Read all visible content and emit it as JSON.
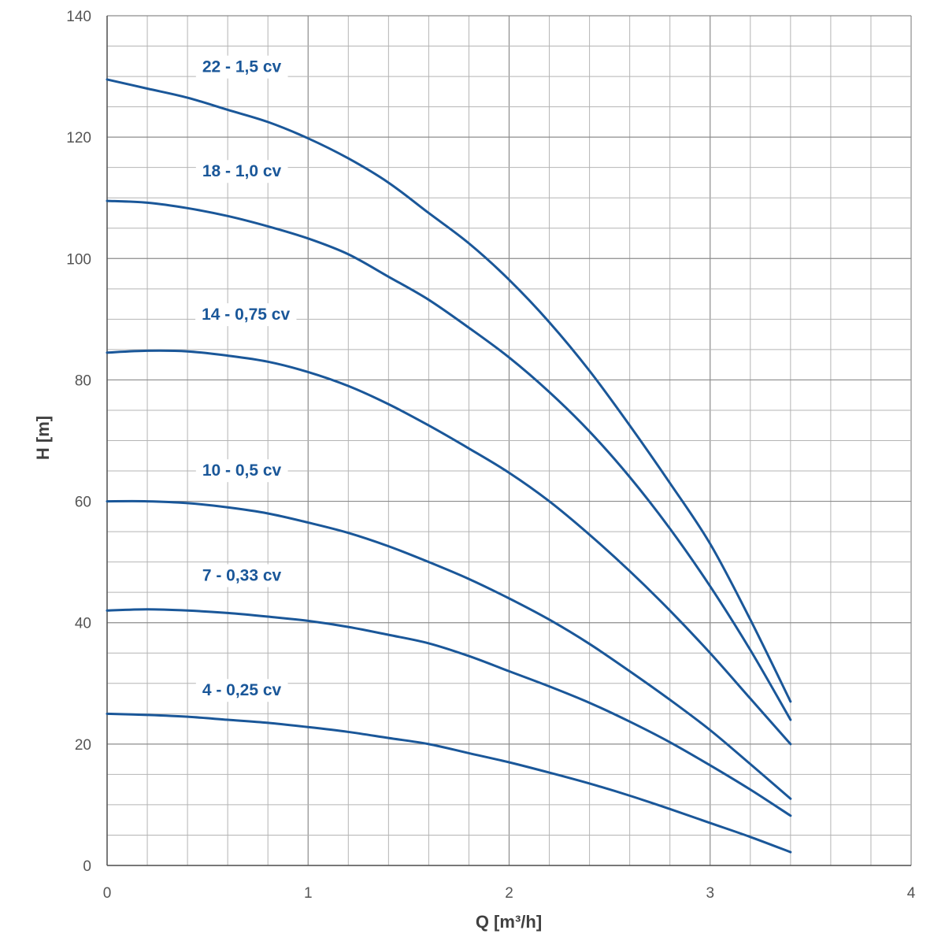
{
  "chart_data": {
    "type": "line",
    "title": "",
    "xlabel": "Q [m³/h]",
    "ylabel": "H [m]",
    "xlim": [
      0,
      4
    ],
    "ylim": [
      0,
      140
    ],
    "x_ticks": [
      "0",
      "1",
      "2",
      "3",
      "4"
    ],
    "y_ticks": [
      "0",
      "20",
      "40",
      "60",
      "80",
      "100",
      "120",
      "140"
    ],
    "x_minor_step": 0.2,
    "y_minor_step": 5,
    "grid": true,
    "line_color": "#1a5799",
    "series": [
      {
        "name": "22 - 1,5 cv",
        "label_at": [
          0.67,
          130.7
        ],
        "x": [
          0,
          0.2,
          0.4,
          0.6,
          0.8,
          1.0,
          1.2,
          1.4,
          1.6,
          1.8,
          2.0,
          2.2,
          2.4,
          2.6,
          2.8,
          3.0,
          3.2,
          3.4
        ],
        "values": [
          129.5,
          128.0,
          126.5,
          124.5,
          122.5,
          119.8,
          116.5,
          112.5,
          107.5,
          102.5,
          96.5,
          89.5,
          81.5,
          72.5,
          63.0,
          53.0,
          40.5,
          27.0
        ]
      },
      {
        "name": "18 - 1,0 cv",
        "label_at": [
          0.67,
          113.5
        ],
        "x": [
          0,
          0.2,
          0.4,
          0.6,
          0.8,
          1.0,
          1.2,
          1.4,
          1.6,
          1.8,
          2.0,
          2.2,
          2.4,
          2.6,
          2.8,
          3.0,
          3.2,
          3.4
        ],
        "values": [
          109.5,
          109.2,
          108.3,
          107.0,
          105.3,
          103.3,
          100.7,
          97.0,
          93.2,
          88.6,
          83.7,
          78.0,
          71.5,
          64.0,
          55.5,
          46.0,
          35.5,
          24.0
        ]
      },
      {
        "name": "14 - 0,75 cv",
        "label_at": [
          0.69,
          89.9
        ],
        "x": [
          0,
          0.2,
          0.4,
          0.6,
          0.8,
          1.0,
          1.2,
          1.4,
          1.6,
          1.8,
          2.0,
          2.2,
          2.4,
          2.6,
          2.8,
          3.0,
          3.2,
          3.4
        ],
        "values": [
          84.5,
          84.8,
          84.7,
          84.0,
          83.0,
          81.3,
          79.0,
          76.0,
          72.5,
          68.7,
          64.7,
          60.0,
          54.5,
          48.5,
          42.0,
          35.0,
          27.5,
          20.0
        ]
      },
      {
        "name": "10 - 0,5 cv",
        "label_at": [
          0.67,
          64.2
        ],
        "x": [
          0,
          0.2,
          0.4,
          0.6,
          0.8,
          1.0,
          1.2,
          1.4,
          1.6,
          1.8,
          2.0,
          2.2,
          2.4,
          2.6,
          2.8,
          3.0,
          3.2,
          3.4
        ],
        "values": [
          60.0,
          60.0,
          59.7,
          59.0,
          58.0,
          56.5,
          54.8,
          52.6,
          50.0,
          47.2,
          44.0,
          40.5,
          36.5,
          32.0,
          27.3,
          22.3,
          16.7,
          11.0
        ]
      },
      {
        "name": "7 - 0,33 cv",
        "label_at": [
          0.67,
          46.9
        ],
        "x": [
          0,
          0.2,
          0.4,
          0.6,
          0.8,
          1.0,
          1.2,
          1.4,
          1.6,
          1.8,
          2.0,
          2.2,
          2.4,
          2.6,
          2.8,
          3.0,
          3.2,
          3.4
        ],
        "values": [
          42.0,
          42.2,
          42.0,
          41.6,
          41.0,
          40.3,
          39.3,
          38.0,
          36.6,
          34.5,
          32.0,
          29.5,
          26.8,
          23.7,
          20.3,
          16.5,
          12.5,
          8.2
        ]
      },
      {
        "name": "4 - 0,25 cv",
        "label_at": [
          0.67,
          28.0
        ],
        "x": [
          0,
          0.2,
          0.4,
          0.6,
          0.8,
          1.0,
          1.2,
          1.4,
          1.6,
          1.8,
          2.0,
          2.2,
          2.4,
          2.6,
          2.8,
          3.0,
          3.2,
          3.4
        ],
        "values": [
          25.0,
          24.8,
          24.5,
          24.0,
          23.5,
          22.8,
          22.0,
          21.0,
          20.0,
          18.5,
          17.0,
          15.3,
          13.5,
          11.5,
          9.3,
          7.0,
          4.7,
          2.2
        ]
      }
    ]
  }
}
